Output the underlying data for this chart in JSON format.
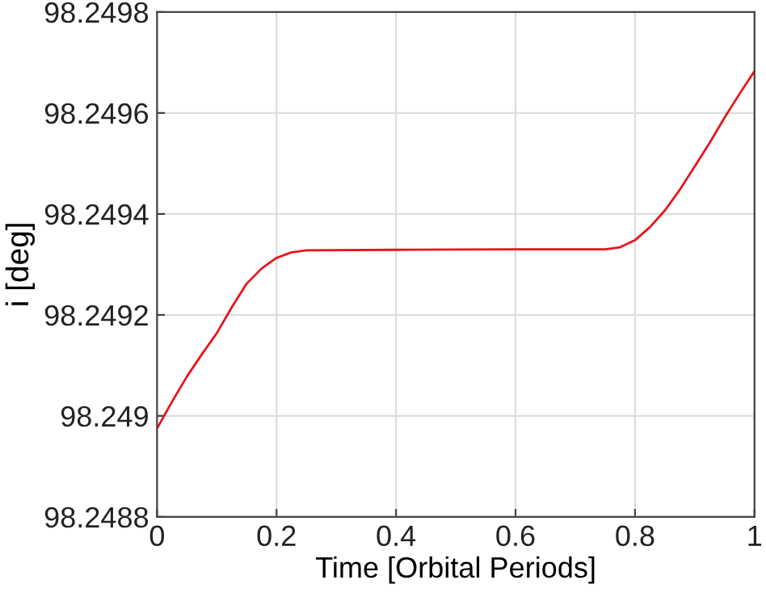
{
  "chart_data": {
    "type": "line",
    "xlabel": "Time [Orbital Periods]",
    "ylabel": "i [deg]",
    "x": [
      0,
      0.025,
      0.05,
      0.075,
      0.1,
      0.125,
      0.15,
      0.175,
      0.2,
      0.225,
      0.25,
      0.4,
      0.6,
      0.75,
      0.775,
      0.8,
      0.825,
      0.85,
      0.875,
      0.9,
      0.925,
      0.95,
      0.975,
      1.0
    ],
    "series": [
      {
        "color": "#e8141c",
        "values": [
          98.248975,
          98.249028,
          98.249078,
          98.249122,
          98.249164,
          98.249215,
          98.249262,
          98.249292,
          98.249313,
          98.249324,
          98.249328,
          98.249329,
          98.24933,
          98.24933,
          98.249334,
          98.249348,
          98.249374,
          98.249407,
          98.249448,
          98.249494,
          98.249541,
          98.249591,
          98.249638,
          98.249683
        ]
      }
    ],
    "xlim": [
      0,
      1
    ],
    "xticks": [
      0,
      0.2,
      0.4,
      0.6,
      0.8,
      1
    ],
    "ylim": [
      98.2488,
      98.2498
    ],
    "yticks": [
      98.2488,
      98.249,
      98.2492,
      98.2494,
      98.2496,
      98.2498
    ],
    "grid": true,
    "legend": false,
    "marker": "none",
    "line_style": "solid"
  }
}
